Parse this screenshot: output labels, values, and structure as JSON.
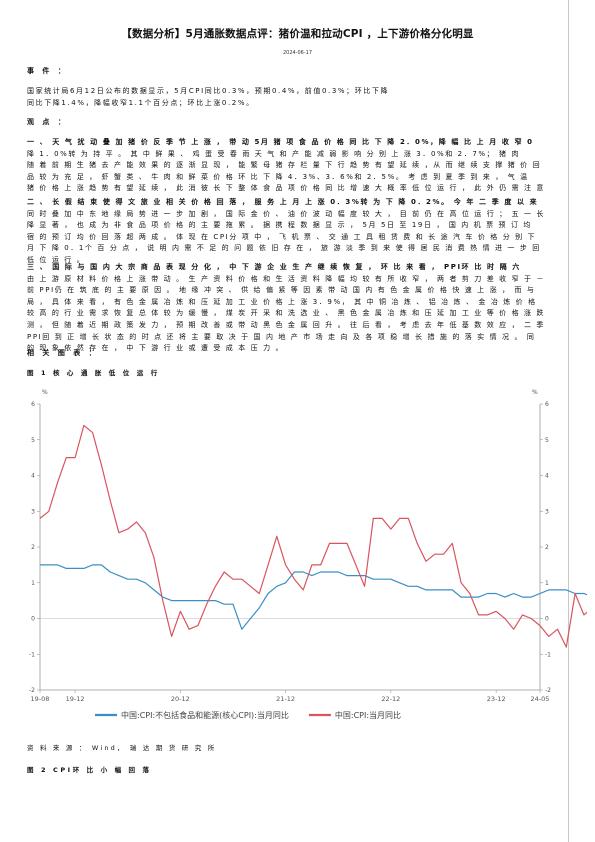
{
  "doc": {
    "title": "【数据分析】5月通胀数据点评：猪价温和拉动CPI ，上下游价格分化明显",
    "date": "2024-06-17",
    "event_heading": "事 件 ：",
    "event_lines": [
      "国家统计局6月12日公布的数据显示，5月CPI同比0.3%，预期0.4%，前值0.3%；环比下降",
      "同比下降1.4%，降幅收窄1.1个百分点；环比上涨0.2%。"
    ],
    "view_heading": "观 点 ：",
    "para1_lines": [
      "一 、 天 气 扰 动 叠 加 猪 价 反 季 节 上 涨 ， 带 动 5月 猪 项 食 品 价 格 同 比 下 降 2．0%，降 幅 比 上 月 收 窄 0",
      "降 1．0%转 为 持 平 。 其 中 鲜 果 、 鸡 蛋 受 春 雨 天 气 和 产 能 减 弱 影 响 分 别 上 涨 3．0%和 2．7%； 猪 肉",
      "随 着 前 期 生 猪 去 产 能 效 果 的 逐 渐 显 现 ， 能 繁 母 猪 存 栏 量 下 行 趋 势 有 望 延 续 ，从 而 继 续 支 撑 猪 价 回",
      "品 较 为 充 足 ， 虾 蟹 类 、 牛 肉 和 鲜 菜 价 格 环 比 下 降 4．3%、3．6%和 2．5%。 考 虑 到 夏 季 到 来 ， 气 温",
      "猪 价 格 上 涨 趋 势 有 望 延 续 ， 此 消 彼 长 下 整 体 食 品 项 价 格 同 比 增 速 大 概 率 低 位 运 行 ， 此 外 仍 需 注 意"
    ],
    "para2_lines": [
      "二 、 长 假 结 束 使 得 文 旅 业 相 关 价 格 回 落 ， 服 务 上 月 上 涨 0．3%转 为 下 降 0．2%。 今 年 二 季 度 以 来",
      "同 时 叠 加 中 东 地 缘 局 势 进 一 步 加 剧 ， 国 际 金 价 、 油 价 波 动 幅 度 较 大 ， 目 前 仍 在 高 位 运 行 ； 五 一 长",
      "降 显 著 ， 也 成 为 非 食 品 项 价 格 的 主 要 拖 累 。 据 携 程 数 据 显 示 ， 5月 5日 至 19日 ， 国 内 机 票 预 订 均",
      "宿 的 预 订 均 价 回 落 超 两 成 。 体 现 在 CPI分 项 中 ， 飞 机 票 、 交 通 工 具 租 赁 费 和 长 途 汽 车 价 格 分 别 下",
      "月 下 降 0．1个 百 分 点 ， 说 明 内 需 不 足 的 问 题 依 旧 存 在 ， 旅 游 淡 季 到 来 使 得 居 民 消 费 热 情 进 一 步 回",
      "低 位 运 行 。"
    ],
    "para3_lines": [
      "三 、 国 际 与 国 内 大 宗 商 品 表 现 分 化 ， 中 下 游 企 业 生 产 继 续 恢 复 ， 环 比 来 看 ，   PPI环 比 时 隔 六",
      "由 上 游 原 材 料 价 格 上 涨 带 动 。 生 产 资 料 价 格 和 生 活 资 料 降 幅 均 较 有 所 收 窄 ， 两 者 剪 刀 差 收 窄 于 －",
      "前 PPI仍 在 筑 底 的 主 要 原 因 。 地 缘 冲 突 、 供 给 偏 紧 等 因 素 带 动 国 内 有 色 金 属 价 格 快 速 上 涨 ， 而 与",
      "局 ， 具 体 来 看 ， 有 色 金 属 冶 炼 和 压 延 加 工 业 价 格 上 涨 3．9%， 其 中 铜 冶 炼 、 铝 冶 炼 、 金 冶 炼 价 格",
      "较 高 的 行 业 需 求 恢 复 总 体 较 为 缓 慢 ， 煤 炭 开 采 和 洗 选 业 、 黑 色 金 属 冶 炼 和 压 延 加 工 业 等 价 格 涨 跌",
      "测 ， 但 随 着 近 期 政 策 发 力 ， 预 期 改 善 或 带 动 黑 色 金 属 回 升 。 往 后 看 ， 考 虑 去 年 低 基 数 效 应 ， 二 季",
      "PPI回 到 正 增 长 状 态 的 时 点 还 将 主 要 取 决 于 国 内 地 产 市 场 走 向 及 各 项 稳 增 长 措 施 的 落 实 情 况 。 同",
      "的 现 象 依 然 存 在 ， 中 下 游 行 业 或 遭 受 成 本 压 力 。"
    ],
    "related_heading": "相 关 图 表 ：",
    "fig1_caption": "图    1    核 心 通 胀 低 位 运 行",
    "source": "资 料 来 源 ： Wind， 瑞 达 期 货 研 究 所",
    "fig2_caption": "图    2    CPI环 比 小 幅 回 落"
  },
  "chart_data": {
    "type": "line",
    "title": "",
    "left_unit": "%",
    "right_unit": "%",
    "ylim": [
      -2,
      6
    ],
    "y_ticks": [
      -2,
      -1,
      0,
      1,
      2,
      3,
      4,
      5,
      6
    ],
    "x_tick_labels": [
      "19-08",
      "19-12",
      "20-12",
      "21-12",
      "22-12",
      "23-12",
      "24-05"
    ],
    "x_start": "2019-08",
    "x_end": "2024-05",
    "grid": false,
    "legend_position": "bottom",
    "series": [
      {
        "name": "中国:CPI:不包括食品和能源(核心CPI):当月同比",
        "color": "#3a8fc6",
        "values": [
          1.5,
          1.5,
          1.5,
          1.4,
          1.4,
          1.4,
          1.5,
          1.5,
          1.3,
          1.2,
          1.1,
          1.1,
          1.0,
          0.8,
          0.6,
          0.5,
          0.5,
          0.5,
          0.5,
          0.5,
          0.5,
          0.4,
          0.4,
          -0.3,
          0.0,
          0.3,
          0.7,
          0.9,
          1.0,
          1.3,
          1.3,
          1.2,
          1.3,
          1.3,
          1.3,
          1.2,
          1.2,
          1.2,
          1.1,
          1.1,
          1.1,
          1.0,
          0.9,
          0.9,
          0.8,
          0.8,
          0.8,
          0.8,
          0.6,
          0.6,
          0.6,
          0.7,
          0.7,
          0.6,
          0.7,
          0.6,
          0.6,
          0.7,
          0.8,
          0.8,
          0.8,
          0.7,
          0.7,
          0.6,
          0.6,
          0.6,
          1.2,
          0.7,
          0.7,
          0.6
        ]
      },
      {
        "name": "中国:CPI:当月同比",
        "color": "#d9545f",
        "values": [
          2.8,
          3.0,
          3.8,
          4.5,
          4.5,
          5.4,
          5.2,
          4.3,
          3.3,
          2.4,
          2.5,
          2.7,
          2.4,
          1.7,
          0.5,
          -0.5,
          0.2,
          -0.3,
          -0.2,
          0.4,
          0.9,
          1.3,
          1.1,
          1.1,
          0.9,
          0.7,
          1.5,
          2.3,
          1.5,
          1.1,
          0.8,
          1.5,
          1.5,
          2.1,
          2.1,
          2.1,
          1.5,
          0.9,
          2.8,
          2.8,
          2.5,
          2.8,
          2.8,
          2.1,
          1.6,
          1.8,
          1.8,
          2.1,
          1.0,
          0.7,
          0.1,
          0.1,
          0.2,
          0.0,
          -0.3,
          0.1,
          0.0,
          -0.2,
          -0.5,
          -0.3,
          -0.8,
          0.7,
          0.1,
          0.3,
          0.3,
          0.3,
          0.3,
          0.3,
          0.3,
          0.3
        ]
      }
    ]
  }
}
